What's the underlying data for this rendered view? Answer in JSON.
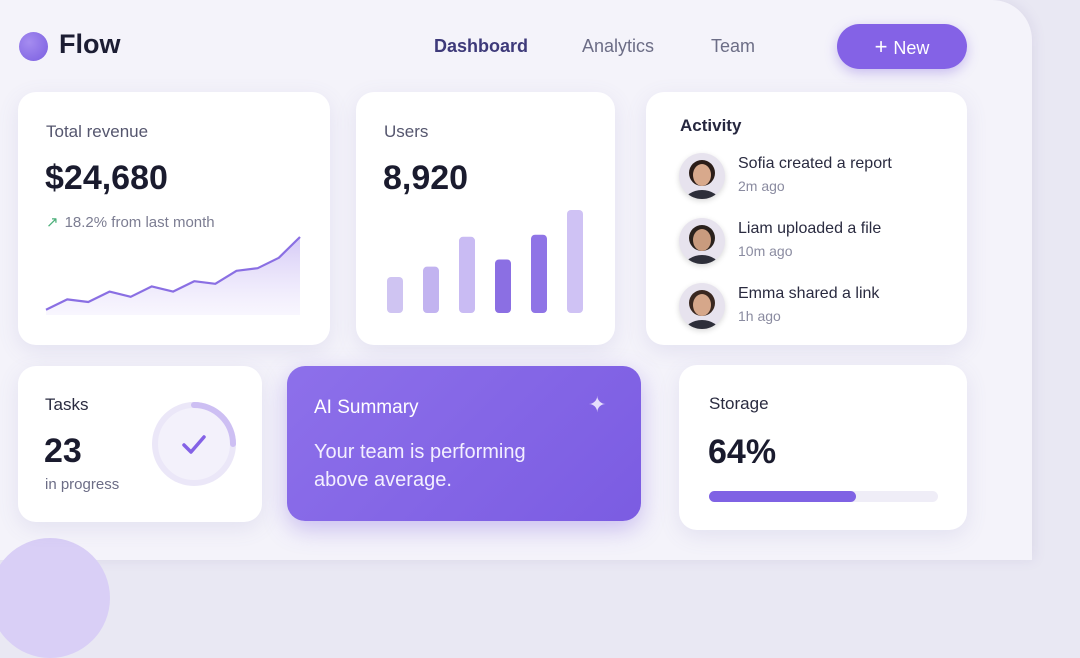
{
  "header": {
    "logo": "Flow",
    "nav": [
      "Dashboard",
      "Analytics",
      "Team"
    ],
    "button": "New"
  },
  "revenue": {
    "title": "Total revenue",
    "value": "$24,680",
    "change": "18.2% from last month",
    "trend": [
      2,
      6,
      5,
      9,
      7,
      11,
      9,
      13,
      12,
      17,
      18,
      22,
      30
    ]
  },
  "users": {
    "title": "Users",
    "value": "8,920",
    "bars": [
      35,
      45,
      74,
      52,
      76,
      100
    ],
    "bar_colors": [
      "#cfc4f2",
      "#c2b3f0",
      "#c9bbf3",
      "#8b6fe3",
      "#8f74e6",
      "#cfc2f4"
    ]
  },
  "activity": {
    "title": "Activity",
    "items": [
      {
        "text": "Sofia created a report",
        "time": "2m ago"
      },
      {
        "text": "Liam uploaded a file",
        "time": "10m ago"
      },
      {
        "text": "Emma shared a link",
        "time": "1h ago"
      }
    ]
  },
  "tasks": {
    "title": "Tasks",
    "value": "23",
    "note": "in progress"
  },
  "ai_summary": {
    "title": "AI Summary",
    "text": "Your team is performing above average."
  },
  "storage": {
    "title": "Storage",
    "value": 64,
    "value_label": "64%"
  }
}
